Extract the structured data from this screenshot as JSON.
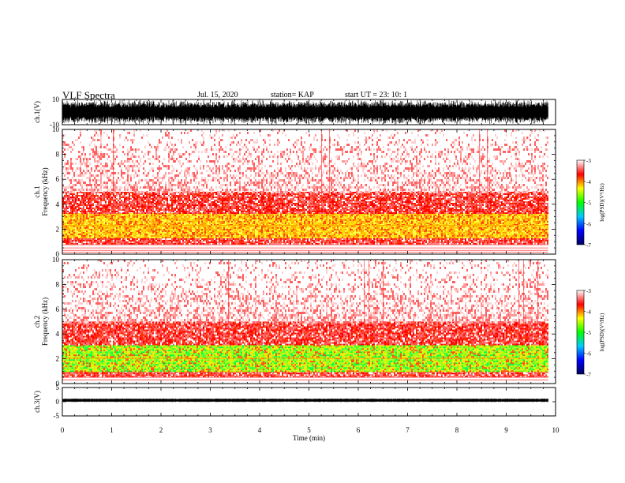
{
  "header": {
    "title": "VLF Spectra",
    "date": "Jul. 15, 2020",
    "station": "station= KAP",
    "start_ut": "start UT =  23: 10: 1"
  },
  "chart_data": [
    {
      "type": "line",
      "panel": "ch1-waveform",
      "ylabel": "ch.1(V)",
      "ylim": [
        -10,
        10
      ],
      "yticks": [
        "10",
        "-10"
      ],
      "x_range_min": [
        0,
        9.85
      ],
      "note_values": "dense broadband waveform filling most of the range"
    },
    {
      "type": "heatmap",
      "panel": "ch1-spectrogram",
      "ylabel": "ch.1\nFrequency (kHz)",
      "ylim_khz": [
        0,
        10
      ],
      "yticks": [
        "0",
        "2",
        "4",
        "6",
        "8",
        "10"
      ],
      "x_range_min": [
        0,
        9.85
      ],
      "colorbar": {
        "label": "log(PSD)(V²/Hz)",
        "range": [
          -7,
          -3
        ],
        "ticks": [
          "-3",
          "-4",
          "-5",
          "-6",
          "-7"
        ],
        "colors": [
          "#000060",
          "#0000ff",
          "#00c8ff",
          "#00ff00",
          "#ffff00",
          "#ff0000",
          "#ffffff"
        ]
      },
      "bands_khz": [
        {
          "from": 0.85,
          "to": 1.4,
          "level": "red"
        },
        {
          "from": 1.4,
          "to": 3.3,
          "level": "yellow"
        },
        {
          "from": 3.3,
          "to": 5.0,
          "level": "red"
        },
        {
          "from": 5.0,
          "to": 10,
          "level": "sparse-red"
        }
      ],
      "lines_khz": [
        2.3,
        0.75,
        0.5,
        0.3,
        0.15
      ]
    },
    {
      "type": "heatmap",
      "panel": "ch2-spectrogram",
      "ylabel": "ch.2\nFrequency (kHz)",
      "ylim_khz": [
        0,
        10
      ],
      "yticks": [
        "0",
        "2",
        "4",
        "6",
        "8",
        "10"
      ],
      "x_range_min": [
        0,
        9.85
      ],
      "colorbar": {
        "label": "log(PSD)(V²/Hz)",
        "range": [
          -7,
          -3
        ],
        "ticks": [
          "-3",
          "-4",
          "-5",
          "-6",
          "-7"
        ],
        "colors": [
          "#000060",
          "#0000ff",
          "#00c8ff",
          "#00ff00",
          "#ffff00",
          "#ff0000",
          "#ffffff"
        ]
      },
      "bands_khz": [
        {
          "from": 0.6,
          "to": 1.0,
          "level": "red"
        },
        {
          "from": 1.0,
          "to": 3.1,
          "level": "green"
        },
        {
          "from": 3.1,
          "to": 5.0,
          "level": "red"
        },
        {
          "from": 5.0,
          "to": 10,
          "level": "sparse-red"
        }
      ],
      "lines_khz": [
        2.05,
        0.5,
        0.3
      ]
    },
    {
      "type": "line",
      "panel": "ch3-waveform",
      "ylabel": "ch.3(V)",
      "ylim": [
        -5,
        5
      ],
      "yticks": [
        "5",
        "0",
        "-5"
      ],
      "x_range_min": [
        0,
        9.85
      ],
      "center_value": 0.5,
      "amplitude": 0.6
    }
  ],
  "xaxis": {
    "label": "Time (min)",
    "range": [
      0,
      10
    ],
    "ticks": [
      "0",
      "1",
      "2",
      "3",
      "4",
      "5",
      "6",
      "7",
      "8",
      "9",
      "10"
    ]
  }
}
